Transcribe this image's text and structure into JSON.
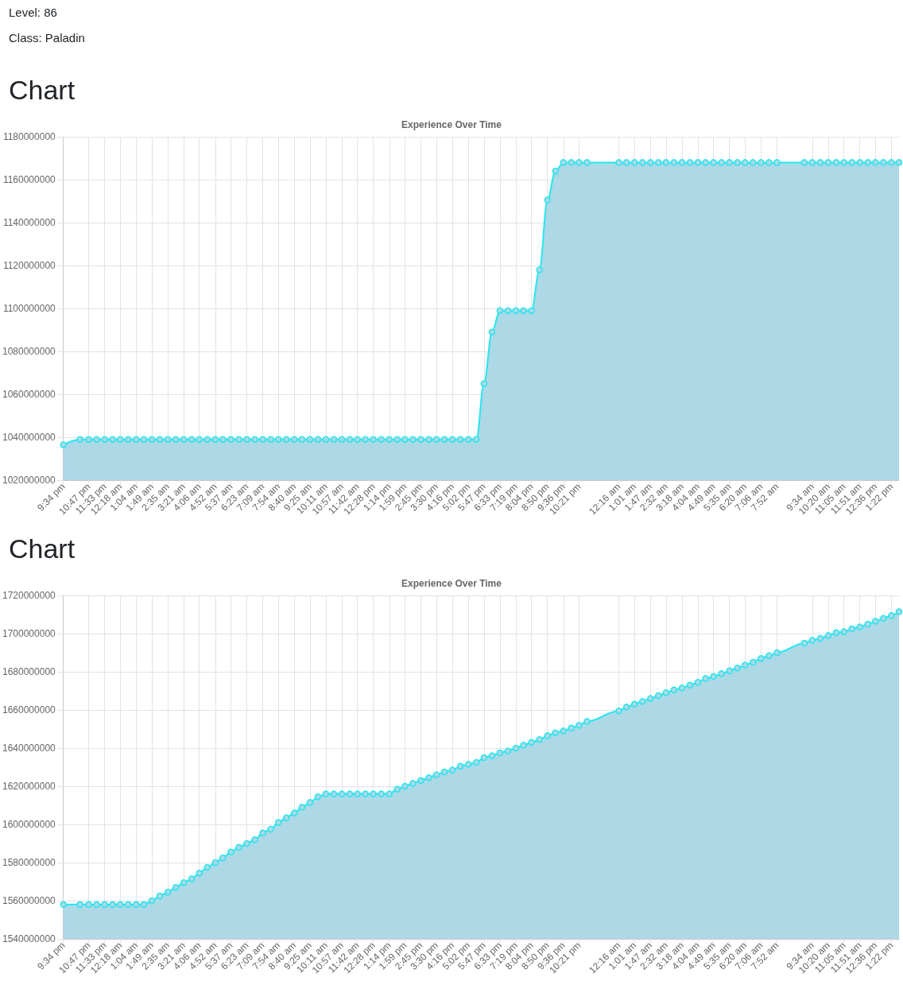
{
  "chart_data": [
    {
      "type": "area",
      "title": "Experience Over Time",
      "annotations": [
        "Level: 86",
        "Class: Paladin",
        "Chart"
      ],
      "x": [
        "--01-01T21:34",
        "--01-01T22:22",
        "--01-01T22:47",
        "--01-01T23:10",
        "--01-01T23:33",
        "--01-01T23:56",
        "--01-02T00:18",
        "--01-02T00:41",
        "--01-02T01:04",
        "--01-02T01:26",
        "--01-02T01:49",
        "--01-02T02:12",
        "--01-02T02:35",
        "--01-02T02:58",
        "--01-02T03:21",
        "--01-02T03:44",
        "--01-02T04:06",
        "--01-02T04:29",
        "--01-02T04:52",
        "--01-02T05:14",
        "--01-02T05:37",
        "--01-02T06:00",
        "--01-02T06:23",
        "--01-02T06:46",
        "--01-02T07:09",
        "--01-02T07:32",
        "--01-02T07:54",
        "--01-02T08:17",
        "--01-02T08:40",
        "--01-02T09:02",
        "--01-02T09:25",
        "--01-02T09:48",
        "--01-02T10:11",
        "--01-02T10:34",
        "--01-02T10:57",
        "--01-02T11:20",
        "--01-02T11:42",
        "--01-02T12:05",
        "--01-02T12:28",
        "--01-02T12:51",
        "--01-02T13:14",
        "--01-02T13:37",
        "--01-02T13:59",
        "--01-02T14:22",
        "--01-02T14:45",
        "--01-02T15:08",
        "--01-02T15:30",
        "--01-02T15:53",
        "--01-02T16:16",
        "--01-02T16:39",
        "--01-02T17:02",
        "--01-02T17:25",
        "--01-02T17:47",
        "--01-02T18:10",
        "--01-02T18:33",
        "--01-02T18:56",
        "--01-02T19:19",
        "--01-02T19:41",
        "--01-02T20:04",
        "--01-02T20:27",
        "--01-02T20:50",
        "--01-02T21:13",
        "--01-02T21:36",
        "--01-02T21:59",
        "--01-02T22:21",
        "--01-02T22:44",
        "--01-03T00:16",
        "--01-03T00:38",
        "--01-03T01:01",
        "--01-03T01:24",
        "--01-03T01:47",
        "--01-03T02:10",
        "--01-03T02:32",
        "--01-03T02:55",
        "--01-03T03:18",
        "--01-03T03:41",
        "--01-03T04:04",
        "--01-03T04:26",
        "--01-03T04:49",
        "--01-03T05:12",
        "--01-03T05:35",
        "--01-03T05:58",
        "--01-03T06:20",
        "--01-03T06:43",
        "--01-03T07:06",
        "--01-03T07:29",
        "--01-03T07:52",
        "--01-03T09:11",
        "--01-03T09:34",
        "--01-03T09:57",
        "--01-03T10:20",
        "--01-03T10:43",
        "--01-03T11:05",
        "--01-03T11:28",
        "--01-03T11:51",
        "--01-03T12:14",
        "--01-03T12:36",
        "--01-03T12:59",
        "--01-03T13:22",
        "--01-03T13:44"
      ],
      "values": [
        1036500000,
        1039000000,
        1039000000,
        1039000000,
        1039000000,
        1039000000,
        1039000000,
        1039000000,
        1039000000,
        1039000000,
        1039000000,
        1039000000,
        1039000000,
        1039000000,
        1039000000,
        1039000000,
        1039000000,
        1039000000,
        1039000000,
        1039000000,
        1039000000,
        1039000000,
        1039000000,
        1039000000,
        1039000000,
        1039000000,
        1039000000,
        1039000000,
        1039000000,
        1039000000,
        1039000000,
        1039000000,
        1039000000,
        1039000000,
        1039000000,
        1039000000,
        1039000000,
        1039000000,
        1039000000,
        1039000000,
        1039000000,
        1039000000,
        1039000000,
        1039000000,
        1039000000,
        1039000000,
        1039000000,
        1039000000,
        1039000000,
        1039000000,
        1039000000,
        1039000000,
        1065000000,
        1089000000,
        1099000000,
        1099000000,
        1099000000,
        1099000000,
        1099000000,
        1118000000,
        1150500000,
        1164000000,
        1168000000,
        1168000000,
        1168000000,
        1168000000,
        1168000000,
        1168000000,
        1168000000,
        1168000000,
        1168000000,
        1168000000,
        1168000000,
        1168000000,
        1168000000,
        1168000000,
        1168000000,
        1168000000,
        1168000000,
        1168000000,
        1168000000,
        1168000000,
        1168000000,
        1168000000,
        1168000000,
        1168000000,
        1168000000,
        1168000000,
        1168000000,
        1168000000,
        1168000000,
        1168000000,
        1168000000,
        1168000000,
        1168000000,
        1168000000,
        1168000000,
        1168000000,
        1168000000,
        1168000000
      ],
      "color": "#add8e6",
      "marker": "circle",
      "grid": true,
      "xlim": [
        "--01-01T21:34",
        "--01-03T13:44"
      ],
      "xticks": [
        {
          "value": "--01-01T21:34",
          "label": "9:34 pm"
        },
        {
          "value": "--01-01T22:47",
          "label": "10:47 pm"
        },
        {
          "value": "--01-01T23:33",
          "label": "11:33 pm"
        },
        {
          "value": "--01-02T00:18",
          "label": "12:18 am"
        },
        {
          "value": "--01-02T01:04",
          "label": "1:04 am"
        },
        {
          "value": "--01-02T01:49",
          "label": "1:49 am"
        },
        {
          "value": "--01-02T02:35",
          "label": "2:35 am"
        },
        {
          "value": "--01-02T03:21",
          "label": "3:21 am"
        },
        {
          "value": "--01-02T04:06",
          "label": "4:06 am"
        },
        {
          "value": "--01-02T04:52",
          "label": "4:52 am"
        },
        {
          "value": "--01-02T05:37",
          "label": "5:37 am"
        },
        {
          "value": "--01-02T06:23",
          "label": "6:23 am"
        },
        {
          "value": "--01-02T07:09",
          "label": "7:09 am"
        },
        {
          "value": "--01-02T07:54",
          "label": "7:54 am"
        },
        {
          "value": "--01-02T08:40",
          "label": "8:40 am"
        },
        {
          "value": "--01-02T09:25",
          "label": "9:25 am"
        },
        {
          "value": "--01-02T10:11",
          "label": "10:11 am"
        },
        {
          "value": "--01-02T10:57",
          "label": "10:57 am"
        },
        {
          "value": "--01-02T11:42",
          "label": "11:42 am"
        },
        {
          "value": "--01-02T12:28",
          "label": "12:28 pm"
        },
        {
          "value": "--01-02T13:14",
          "label": "1:14 pm"
        },
        {
          "value": "--01-02T13:59",
          "label": "1:59 pm"
        },
        {
          "value": "--01-02T14:45",
          "label": "2:45 pm"
        },
        {
          "value": "--01-02T15:30",
          "label": "3:30 pm"
        },
        {
          "value": "--01-02T16:16",
          "label": "4:16 pm"
        },
        {
          "value": "--01-02T17:02",
          "label": "5:02 pm"
        },
        {
          "value": "--01-02T17:47",
          "label": "5:47 pm"
        },
        {
          "value": "--01-02T18:33",
          "label": "6:33 pm"
        },
        {
          "value": "--01-02T19:19",
          "label": "7:19 pm"
        },
        {
          "value": "--01-02T20:04",
          "label": "8:04 pm"
        },
        {
          "value": "--01-02T20:50",
          "label": "8:50 pm"
        },
        {
          "value": "--01-02T21:36",
          "label": "9:36 pm"
        },
        {
          "value": "--01-02T22:21",
          "label": "10:21 pm"
        },
        {
          "value": "--01-03T00:16",
          "label": "12:16 am"
        },
        {
          "value": "--01-03T01:01",
          "label": "1:01 am"
        },
        {
          "value": "--01-03T01:47",
          "label": "1:47 am"
        },
        {
          "value": "--01-03T02:32",
          "label": "2:32 am"
        },
        {
          "value": "--01-03T03:18",
          "label": "3:18 am"
        },
        {
          "value": "--01-03T04:04",
          "label": "4:04 am"
        },
        {
          "value": "--01-03T04:49",
          "label": "4:49 am"
        },
        {
          "value": "--01-03T05:35",
          "label": "5:35 am"
        },
        {
          "value": "--01-03T06:20",
          "label": "6:20 am"
        },
        {
          "value": "--01-03T07:06",
          "label": "7:06 am"
        },
        {
          "value": "--01-03T07:52",
          "label": "7:52 am"
        },
        {
          "value": "--01-03T09:34",
          "label": "9:34 am"
        },
        {
          "value": "--01-03T10:20",
          "label": "10:20 am"
        },
        {
          "value": "--01-03T11:05",
          "label": "11:05 am"
        },
        {
          "value": "--01-03T11:51",
          "label": "11:51 am"
        },
        {
          "value": "--01-03T12:36",
          "label": "12:36 pm"
        },
        {
          "value": "--01-03T13:22",
          "label": "1:22 pm"
        }
      ],
      "ylim": [
        1020000000,
        1180000000
      ],
      "yticks": [
        1020000000,
        1040000000,
        1060000000,
        1080000000,
        1100000000,
        1120000000,
        1140000000,
        1160000000,
        1180000000
      ]
    },
    {
      "type": "area",
      "title": "Experience Over Time",
      "annotations": [
        "Chart"
      ],
      "x": [
        "--01-01T21:34",
        "--01-01T22:22",
        "--01-01T22:47",
        "--01-01T23:10",
        "--01-01T23:33",
        "--01-01T23:56",
        "--01-02T00:18",
        "--01-02T00:41",
        "--01-02T01:04",
        "--01-02T01:26",
        "--01-02T01:49",
        "--01-02T02:12",
        "--01-02T02:35",
        "--01-02T02:58",
        "--01-02T03:21",
        "--01-02T03:44",
        "--01-02T04:06",
        "--01-02T04:29",
        "--01-02T04:52",
        "--01-02T05:14",
        "--01-02T05:37",
        "--01-02T06:00",
        "--01-02T06:23",
        "--01-02T06:46",
        "--01-02T07:09",
        "--01-02T07:32",
        "--01-02T07:54",
        "--01-02T08:17",
        "--01-02T08:40",
        "--01-02T09:02",
        "--01-02T09:25",
        "--01-02T09:48",
        "--01-02T10:11",
        "--01-02T10:34",
        "--01-02T10:57",
        "--01-02T11:20",
        "--01-02T11:42",
        "--01-02T12:05",
        "--01-02T12:28",
        "--01-02T12:51",
        "--01-02T13:14",
        "--01-02T13:37",
        "--01-02T13:59",
        "--01-02T14:22",
        "--01-02T14:45",
        "--01-02T15:08",
        "--01-02T15:30",
        "--01-02T15:53",
        "--01-02T16:16",
        "--01-02T16:39",
        "--01-02T17:02",
        "--01-02T17:25",
        "--01-02T17:47",
        "--01-02T18:10",
        "--01-02T18:33",
        "--01-02T18:56",
        "--01-02T19:19",
        "--01-02T19:41",
        "--01-02T20:04",
        "--01-02T20:27",
        "--01-02T20:50",
        "--01-02T21:13",
        "--01-02T21:36",
        "--01-02T21:59",
        "--01-02T22:21",
        "--01-02T22:44",
        "--01-03T00:16",
        "--01-03T00:38",
        "--01-03T01:01",
        "--01-03T01:24",
        "--01-03T01:47",
        "--01-03T02:10",
        "--01-03T02:32",
        "--01-03T02:55",
        "--01-03T03:18",
        "--01-03T03:41",
        "--01-03T04:04",
        "--01-03T04:26",
        "--01-03T04:49",
        "--01-03T05:12",
        "--01-03T05:35",
        "--01-03T05:58",
        "--01-03T06:20",
        "--01-03T06:43",
        "--01-03T07:06",
        "--01-03T07:29",
        "--01-03T07:52",
        "--01-03T09:11",
        "--01-03T09:34",
        "--01-03T09:57",
        "--01-03T10:20",
        "--01-03T10:43",
        "--01-03T11:05",
        "--01-03T11:28",
        "--01-03T11:51",
        "--01-03T12:14",
        "--01-03T12:36",
        "--01-03T12:59",
        "--01-03T13:22",
        "--01-03T13:44"
      ],
      "values": [
        1558000000,
        1558000000,
        1558000000,
        1558000000,
        1558000000,
        1558000000,
        1558000000,
        1558000000,
        1558000000,
        1558000000,
        1560000000,
        1562500000,
        1564500000,
        1567000000,
        1569500000,
        1571500000,
        1574500000,
        1577500000,
        1580000000,
        1582500000,
        1585500000,
        1588000000,
        1590000000,
        1592000000,
        1595500000,
        1597500000,
        1601000000,
        1603500000,
        1606000000,
        1609000000,
        1611500000,
        1614500000,
        1616000000,
        1616000000,
        1616000000,
        1616000000,
        1616000000,
        1616000000,
        1616000000,
        1616000000,
        1616000000,
        1618500000,
        1620000000,
        1621500000,
        1623000000,
        1624500000,
        1626000000,
        1627500000,
        1628500000,
        1630500000,
        1631500000,
        1632500000,
        1635000000,
        1636000000,
        1637500000,
        1638500000,
        1640000000,
        1641500000,
        1643000000,
        1644500000,
        1646500000,
        1648000000,
        1649000000,
        1650500000,
        1652000000,
        1654000000,
        1659500000,
        1661500000,
        1663000000,
        1664500000,
        1666000000,
        1667500000,
        1669000000,
        1670500000,
        1671500000,
        1673000000,
        1674500000,
        1676500000,
        1677500000,
        1679000000,
        1680500000,
        1682000000,
        1683500000,
        1685000000,
        1687000000,
        1688500000,
        1690000000,
        1695000000,
        1696500000,
        1697500000,
        1699000000,
        1700500000,
        1701000000,
        1702500000,
        1703500000,
        1705000000,
        1706500000,
        1708000000,
        1709500000,
        1711500000
      ],
      "color": "#add8e6",
      "marker": "circle",
      "grid": true,
      "xlim": [
        "--01-01T21:34",
        "--01-03T13:44"
      ],
      "xticks": [
        {
          "value": "--01-01T21:34",
          "label": "9:34 pm"
        },
        {
          "value": "--01-01T22:47",
          "label": "10:47 pm"
        },
        {
          "value": "--01-01T23:33",
          "label": "11:33 pm"
        },
        {
          "value": "--01-02T00:18",
          "label": "12:18 am"
        },
        {
          "value": "--01-02T01:04",
          "label": "1:04 am"
        },
        {
          "value": "--01-02T01:49",
          "label": "1:49 am"
        },
        {
          "value": "--01-02T02:35",
          "label": "2:35 am"
        },
        {
          "value": "--01-02T03:21",
          "label": "3:21 am"
        },
        {
          "value": "--01-02T04:06",
          "label": "4:06 am"
        },
        {
          "value": "--01-02T04:52",
          "label": "4:52 am"
        },
        {
          "value": "--01-02T05:37",
          "label": "5:37 am"
        },
        {
          "value": "--01-02T06:23",
          "label": "6:23 am"
        },
        {
          "value": "--01-02T07:09",
          "label": "7:09 am"
        },
        {
          "value": "--01-02T07:54",
          "label": "7:54 am"
        },
        {
          "value": "--01-02T08:40",
          "label": "8:40 am"
        },
        {
          "value": "--01-02T09:25",
          "label": "9:25 am"
        },
        {
          "value": "--01-02T10:11",
          "label": "10:11 am"
        },
        {
          "value": "--01-02T10:57",
          "label": "10:57 am"
        },
        {
          "value": "--01-02T11:42",
          "label": "11:42 am"
        },
        {
          "value": "--01-02T12:28",
          "label": "12:28 pm"
        },
        {
          "value": "--01-02T13:14",
          "label": "1:14 pm"
        },
        {
          "value": "--01-02T13:59",
          "label": "1:59 pm"
        },
        {
          "value": "--01-02T14:45",
          "label": "2:45 pm"
        },
        {
          "value": "--01-02T15:30",
          "label": "3:30 pm"
        },
        {
          "value": "--01-02T16:16",
          "label": "4:16 pm"
        },
        {
          "value": "--01-02T17:02",
          "label": "5:02 pm"
        },
        {
          "value": "--01-02T17:47",
          "label": "5:47 pm"
        },
        {
          "value": "--01-02T18:33",
          "label": "6:33 pm"
        },
        {
          "value": "--01-02T19:19",
          "label": "7:19 pm"
        },
        {
          "value": "--01-02T20:04",
          "label": "8:04 pm"
        },
        {
          "value": "--01-02T20:50",
          "label": "8:50 pm"
        },
        {
          "value": "--01-02T21:36",
          "label": "9:36 pm"
        },
        {
          "value": "--01-02T22:21",
          "label": "10:21 pm"
        },
        {
          "value": "--01-03T00:16",
          "label": "12:16 am"
        },
        {
          "value": "--01-03T01:01",
          "label": "1:01 am"
        },
        {
          "value": "--01-03T01:47",
          "label": "1:47 am"
        },
        {
          "value": "--01-03T02:32",
          "label": "2:32 am"
        },
        {
          "value": "--01-03T03:18",
          "label": "3:18 am"
        },
        {
          "value": "--01-03T04:04",
          "label": "4:04 am"
        },
        {
          "value": "--01-03T04:49",
          "label": "4:49 am"
        },
        {
          "value": "--01-03T05:35",
          "label": "5:35 am"
        },
        {
          "value": "--01-03T06:20",
          "label": "6:20 am"
        },
        {
          "value": "--01-03T07:06",
          "label": "7:06 am"
        },
        {
          "value": "--01-03T07:52",
          "label": "7:52 am"
        },
        {
          "value": "--01-03T09:34",
          "label": "9:34 am"
        },
        {
          "value": "--01-03T10:20",
          "label": "10:20 am"
        },
        {
          "value": "--01-03T11:05",
          "label": "11:05 am"
        },
        {
          "value": "--01-03T11:51",
          "label": "11:51 am"
        },
        {
          "value": "--01-03T12:36",
          "label": "12:36 pm"
        },
        {
          "value": "--01-03T13:22",
          "label": "1:22 pm"
        }
      ],
      "ylim": [
        1540000000,
        1720000000
      ],
      "yticks": [
        1540000000,
        1560000000,
        1580000000,
        1600000000,
        1620000000,
        1640000000,
        1660000000,
        1680000000,
        1700000000,
        1720000000
      ]
    }
  ]
}
